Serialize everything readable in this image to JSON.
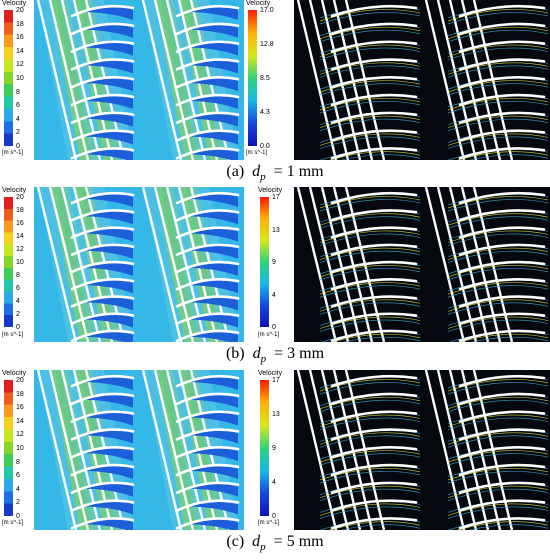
{
  "panels": [
    {
      "tag": "(a)",
      "symbol": "d",
      "subscript": "p",
      "value_text": "= 1 mm",
      "left_legend": {
        "title": "Velocity",
        "ticks": [
          "20",
          "18",
          "16",
          "14",
          "12",
          "10",
          "8",
          "6",
          "4",
          "2",
          "0"
        ],
        "unit": "[m s^-1]"
      },
      "right_legend": {
        "title": "Velocity",
        "ticks": [
          "17.0",
          "12.8",
          "8.5",
          "4.3",
          "0.0"
        ],
        "unit": "[m s^-1]"
      }
    },
    {
      "tag": "(b)",
      "symbol": "d",
      "subscript": "p",
      "value_text": "= 3 mm",
      "left_legend": {
        "title": "Velocity",
        "ticks": [
          "20",
          "18",
          "16",
          "14",
          "12",
          "10",
          "8",
          "6",
          "4",
          "2",
          "0"
        ],
        "unit": "[m s^-1]"
      },
      "right_legend": {
        "title": "Velocity",
        "ticks": [
          "17",
          "13",
          "9",
          "4",
          "0"
        ],
        "unit": "[m s^-1]"
      }
    },
    {
      "tag": "(c)",
      "symbol": "d",
      "subscript": "p",
      "value_text": "= 5 mm",
      "left_legend": {
        "title": "Velocity",
        "ticks": [
          "20",
          "18",
          "16",
          "14",
          "12",
          "10",
          "8",
          "6",
          "4",
          "2",
          "0"
        ],
        "unit": "[m s^-1]"
      },
      "right_legend": {
        "title": "Velocity",
        "ticks": [
          "17",
          "13",
          "9",
          "4",
          "0"
        ],
        "unit": "[m s^-1]"
      }
    }
  ],
  "colors": {
    "contour_bg": "#35b8e8",
    "low_zone": "#1c5fd8",
    "high_zone": "#8fd63a",
    "streamline_bg": "#05080f",
    "streamline": "#3aa7c9",
    "blade": "#ffffff"
  }
}
